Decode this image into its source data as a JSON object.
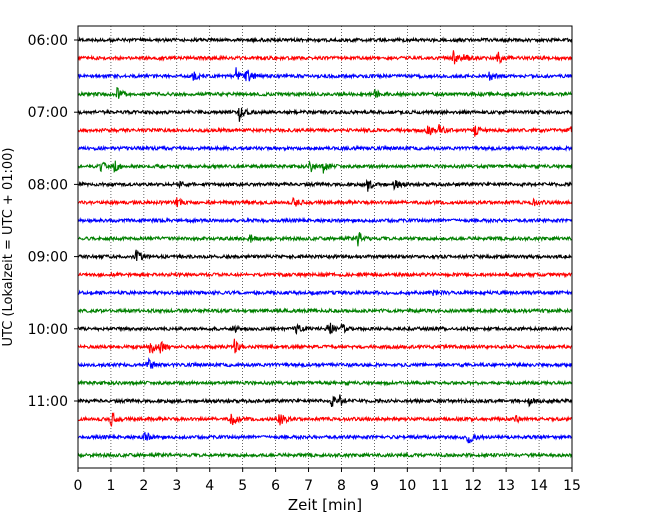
{
  "chart_data": {
    "type": "line",
    "title": "",
    "xlabel": "Zeit  [min]",
    "ylabel": "UTC (Lokalzeit = UTC + 01:00)",
    "xlim": [
      0,
      15
    ],
    "x_ticks": [
      "0",
      "1",
      "2",
      "3",
      "4",
      "5",
      "6",
      "7",
      "8",
      "9",
      "10",
      "11",
      "12",
      "13",
      "14",
      "15"
    ],
    "y_ticks": [
      "06:00",
      "07:00",
      "08:00",
      "09:00",
      "10:00",
      "11:00"
    ],
    "grid": "vertical dotted",
    "colors": [
      "#000000",
      "#ff0000",
      "#0000ff",
      "#008000"
    ],
    "series": [
      {
        "start": "06:00",
        "color": "#000000",
        "events": []
      },
      {
        "start": "06:15",
        "color": "#ff0000",
        "events": [
          [
            11.4,
            0.7
          ],
          [
            11.7,
            0.5
          ],
          [
            12.75,
            0.6
          ]
        ]
      },
      {
        "start": "06:30",
        "color": "#0000ff",
        "events": [
          [
            3.5,
            0.6
          ],
          [
            4.8,
            0.8
          ],
          [
            5.1,
            1.0
          ],
          [
            12.5,
            0.5
          ]
        ]
      },
      {
        "start": "06:45",
        "color": "#008000",
        "events": [
          [
            1.2,
            0.8
          ],
          [
            9.0,
            0.4
          ]
        ]
      },
      {
        "start": "07:00",
        "color": "#000000",
        "events": [
          [
            4.9,
            0.9
          ]
        ]
      },
      {
        "start": "07:15",
        "color": "#ff0000",
        "events": [
          [
            10.6,
            0.7
          ],
          [
            10.95,
            0.6
          ],
          [
            12.05,
            0.6
          ],
          [
            14.95,
            0.4
          ]
        ]
      },
      {
        "start": "07:30",
        "color": "#0000ff",
        "events": []
      },
      {
        "start": "07:45",
        "color": "#008000",
        "events": [
          [
            0.7,
            0.5
          ],
          [
            1.1,
            0.7
          ],
          [
            7.05,
            0.6
          ],
          [
            7.45,
            0.7
          ]
        ]
      },
      {
        "start": "08:00",
        "color": "#000000",
        "events": [
          [
            3.1,
            0.5
          ],
          [
            8.8,
            0.8
          ],
          [
            9.6,
            0.5
          ]
        ]
      },
      {
        "start": "08:15",
        "color": "#ff0000",
        "events": [
          [
            3.0,
            0.4
          ],
          [
            6.55,
            0.5
          ],
          [
            13.8,
            0.4
          ]
        ]
      },
      {
        "start": "08:30",
        "color": "#0000ff",
        "events": []
      },
      {
        "start": "08:45",
        "color": "#008000",
        "events": [
          [
            5.2,
            0.5
          ],
          [
            8.5,
            0.8
          ]
        ]
      },
      {
        "start": "09:00",
        "color": "#000000",
        "events": [
          [
            1.75,
            0.9
          ]
        ]
      },
      {
        "start": "09:15",
        "color": "#ff0000",
        "events": []
      },
      {
        "start": "09:30",
        "color": "#0000ff",
        "events": [
          [
            10.8,
            0.4
          ]
        ]
      },
      {
        "start": "09:45",
        "color": "#008000",
        "events": []
      },
      {
        "start": "10:00",
        "color": "#000000",
        "events": [
          [
            4.7,
            0.4
          ],
          [
            6.6,
            0.5
          ],
          [
            7.6,
            0.9
          ],
          [
            8.0,
            0.6
          ]
        ]
      },
      {
        "start": "10:15",
        "color": "#ff0000",
        "events": [
          [
            2.2,
            0.9
          ],
          [
            2.5,
            0.6
          ],
          [
            4.75,
            0.8
          ]
        ]
      },
      {
        "start": "10:30",
        "color": "#0000ff",
        "events": [
          [
            2.1,
            1.0
          ]
        ]
      },
      {
        "start": "10:45",
        "color": "#008000",
        "events": []
      },
      {
        "start": "11:00",
        "color": "#000000",
        "events": [
          [
            7.7,
            0.6
          ],
          [
            7.95,
            0.5
          ],
          [
            13.7,
            0.4
          ]
        ]
      },
      {
        "start": "11:15",
        "color": "#ff0000",
        "events": [
          [
            1.0,
            0.8
          ],
          [
            4.65,
            1.0
          ],
          [
            6.1,
            1.0
          ],
          [
            13.3,
            0.4
          ]
        ]
      },
      {
        "start": "11:30",
        "color": "#0000ff",
        "events": [
          [
            2.0,
            0.8
          ],
          [
            11.85,
            0.9
          ]
        ]
      },
      {
        "start": "11:45",
        "color": "#008000",
        "events": []
      }
    ]
  }
}
